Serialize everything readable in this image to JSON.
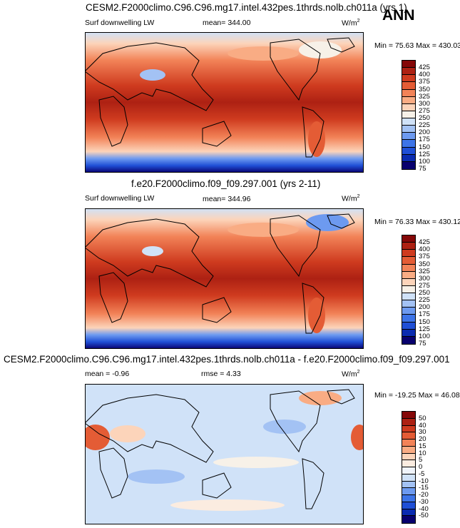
{
  "season": "ANN",
  "colors": {
    "warm_scale": [
      "#08006e",
      "#0a2bb0",
      "#1f4fd6",
      "#3d74e8",
      "#6d9af0",
      "#a3c2f4",
      "#d0e2f8",
      "#f7f1e8",
      "#fcd4ba",
      "#f9ac84",
      "#f28358",
      "#e45c35",
      "#cf3b1f",
      "#ad2113",
      "#850808"
    ],
    "diff_scale": [
      "#08006e",
      "#0a2bb0",
      "#1f4fd6",
      "#3d74e8",
      "#6d9af0",
      "#a3c2f4",
      "#d0e2f8",
      "#f0f4fb",
      "#fbece0",
      "#fcd4ba",
      "#f9ac84",
      "#f28358",
      "#e45c35",
      "#cf3b1f",
      "#ad2113",
      "#850808"
    ]
  },
  "panels": [
    {
      "id": "test",
      "title": "CESM2.F2000climo.C96.C96.mg17.intel.432pes.1thrds.nolb.ch011a (yrs 1)",
      "variable": "Surf downwelling LW",
      "mean": "mean= 344.00",
      "units": "W/m",
      "units_exp": "2",
      "minmax": "Min =  75.63 Max = 430.03",
      "levels": [
        "425",
        "400",
        "375",
        "350",
        "325",
        "300",
        "275",
        "250",
        "225",
        "200",
        "175",
        "150",
        "125",
        "100",
        "75"
      ]
    },
    {
      "id": "ref",
      "title": "f.e20.F2000climo.f09_f09.297.001 (yrs 2-11)",
      "variable": "Surf downwelling LW",
      "mean": "mean= 344.96",
      "units": "W/m",
      "units_exp": "2",
      "minmax": "Min =  76.33 Max = 430.12",
      "levels": [
        "425",
        "400",
        "375",
        "350",
        "325",
        "300",
        "275",
        "250",
        "225",
        "200",
        "175",
        "150",
        "125",
        "100",
        "75"
      ]
    },
    {
      "id": "diff",
      "title": "CESM2.F2000climo.C96.C96.mg17.intel.432pes.1thrds.nolb.ch011a - f.e20.F2000climo.f09_f09.297.001",
      "mean": "mean =  -0.96",
      "rmse": "rmse =   4.33",
      "units": "W/m",
      "units_exp": "2",
      "minmax": "Min = -19.25 Max =  46.08",
      "levels": [
        "50",
        "40",
        "30",
        "20",
        "15",
        "10",
        "5",
        "0",
        "-5",
        "-10",
        "-15",
        "-20",
        "-30",
        "-40",
        "-50"
      ]
    }
  ]
}
